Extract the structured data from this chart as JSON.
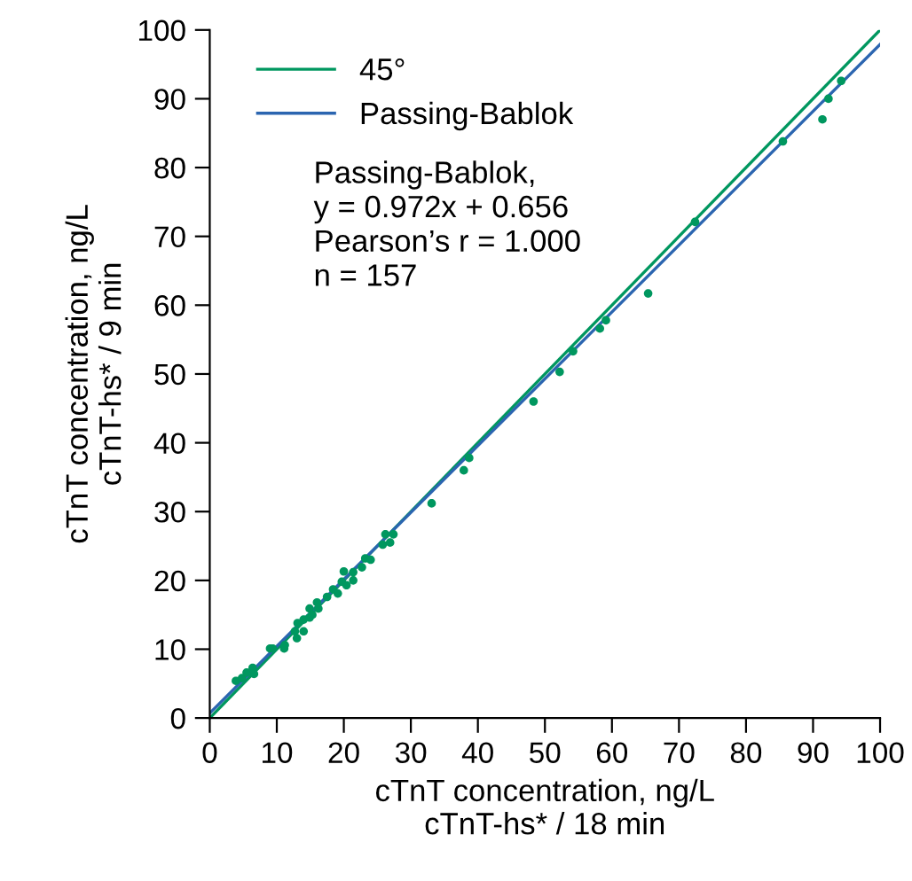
{
  "chart_data": {
    "type": "scatter",
    "xlabel": "cTnT concentration, ng/L\ncTnT-hs* / 18 min",
    "ylabel": "cTnT concentration, ng/L\ncTnT-hs* / 9 min",
    "xlim": [
      0,
      100
    ],
    "ylim": [
      0,
      100
    ],
    "xticks": [
      0,
      10,
      20,
      30,
      40,
      50,
      60,
      70,
      80,
      90,
      100
    ],
    "yticks": [
      0,
      10,
      20,
      30,
      40,
      50,
      60,
      70,
      80,
      90,
      100
    ],
    "grid": false,
    "legend": "top left",
    "annotations": [
      "Passing-Bablok,\ny = 0.972x + 0.656\nPearson’s r = 1.000\nn = 157"
    ],
    "series": [
      {
        "color": "#00975f",
        "marker": "circle",
        "x": [
          3.9,
          4.8,
          5.5,
          6.4,
          6.6,
          9.0,
          9.4,
          11.1,
          11.2,
          12.7,
          13.0,
          13.1,
          14.0,
          14.0,
          14.9,
          14.9,
          15.3,
          16.0,
          16.2,
          17.5,
          18.4,
          19.1,
          19.7,
          20.0,
          20.4,
          21.4,
          21.4,
          22.7,
          23.2,
          24.0,
          25.8,
          26.2,
          26.9,
          27.4,
          33.1,
          37.9,
          38.7,
          48.3,
          52.2,
          54.2,
          58.2,
          59.1,
          65.4,
          72.4,
          85.5,
          91.4,
          92.3,
          94.2
        ],
        "values": [
          5.4,
          5.8,
          6.6,
          7.3,
          6.4,
          10.1,
          10.1,
          10.1,
          10.6,
          12.6,
          11.6,
          13.8,
          12.6,
          14.3,
          14.6,
          15.9,
          15.0,
          16.8,
          15.9,
          17.6,
          18.7,
          18.1,
          19.8,
          21.3,
          19.3,
          20.0,
          21.2,
          21.9,
          23.2,
          23.0,
          25.2,
          26.7,
          25.5,
          26.7,
          31.2,
          36.0,
          37.8,
          46.0,
          50.3,
          53.3,
          56.6,
          57.8,
          61.7,
          72.1,
          83.8,
          87.0,
          90.0,
          92.6
        ]
      },
      {
        "type": "line",
        "name": "45°",
        "color": "#00975f",
        "x": [
          0,
          100
        ],
        "values": [
          0,
          100
        ]
      },
      {
        "type": "line",
        "name": "Passing-Bablok",
        "color": "#2b65b0",
        "x": [
          0,
          100
        ],
        "values": [
          0.7,
          97.9
        ]
      }
    ]
  }
}
